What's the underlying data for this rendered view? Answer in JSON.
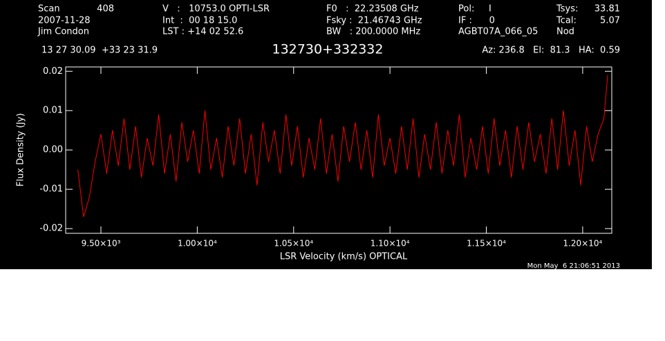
{
  "header": {
    "scan_label": "Scan",
    "scan": "408",
    "date": "2007-11-28",
    "observer": "Jim Condon",
    "velocity": "V   :   10753.0 OPTI-LSR",
    "int": "Int  :  00 18 15.0",
    "lst": "LST : +14 02 52.6",
    "f0": "F0   :  22.23508 GHz",
    "fsky": "Fsky :  21.46743 GHz",
    "bw": "BW   : 200.0000 MHz",
    "pol": "Pol:     I",
    "if": "IF :      0",
    "project": "AGBT07A_066_05",
    "tsys_label": "Tsys:",
    "tsys": "33.81",
    "tcal_label": "Tcal:",
    "tcal": "5.07",
    "procedure": "Nod",
    "coords": "13 27 30.09  +33 23 31.9",
    "azelha": "Az: 236.8   El:  81.3   HA:  0.59"
  },
  "chart_data": {
    "type": "line",
    "title": "132730+332332",
    "x_label": "LSR Velocity (km/s) OPTICAL",
    "y_label": "Flux Density (Jy)",
    "timestamp": "Mon May  6 21:06:51 2013",
    "color": "#ff0000",
    "xlim": [
      9317,
      12151
    ],
    "ylim": [
      -0.0212,
      0.0211
    ],
    "xticks": [
      {
        "value": 9500,
        "label": "9.50×10³"
      },
      {
        "value": 10000,
        "label": "1.00×10⁴"
      },
      {
        "value": 10500,
        "label": "1.05×10⁴"
      },
      {
        "value": 11000,
        "label": "1.10×10⁴"
      },
      {
        "value": 11500,
        "label": "1.15×10⁴"
      },
      {
        "value": 12000,
        "label": "1.20×10⁴"
      }
    ],
    "yticks": [
      -0.02,
      -0.01,
      {
        "value": 0,
        "label": "0.00"
      },
      0.01,
      0.02
    ],
    "x": [
      9380,
      9410,
      9440,
      9470,
      9500,
      9530,
      9560,
      9590,
      9620,
      9650,
      9680,
      9710,
      9740,
      9770,
      9800,
      9830,
      9860,
      9890,
      9920,
      9950,
      9980,
      10010,
      10040,
      10070,
      10100,
      10130,
      10160,
      10190,
      10220,
      10250,
      10280,
      10310,
      10340,
      10370,
      10400,
      10430,
      10460,
      10490,
      10520,
      10550,
      10580,
      10610,
      10640,
      10670,
      10700,
      10730,
      10760,
      10790,
      10820,
      10850,
      10880,
      10910,
      10940,
      10970,
      11000,
      11030,
      11060,
      11090,
      11120,
      11150,
      11180,
      11210,
      11240,
      11270,
      11300,
      11330,
      11360,
      11390,
      11420,
      11450,
      11480,
      11510,
      11540,
      11570,
      11600,
      11630,
      11660,
      11690,
      11720,
      11750,
      11780,
      11810,
      11840,
      11870,
      11900,
      11930,
      11960,
      11990,
      12020,
      12050,
      12080,
      12110,
      12130
    ],
    "values": [
      -0.005,
      -0.017,
      -0.012,
      -0.003,
      0.004,
      -0.006,
      0.005,
      -0.004,
      0.008,
      -0.005,
      0.006,
      -0.007,
      0.003,
      -0.004,
      0.009,
      -0.006,
      0.004,
      -0.008,
      0.007,
      -0.003,
      0.005,
      -0.006,
      0.01,
      -0.005,
      0.003,
      -0.007,
      0.006,
      -0.004,
      0.008,
      -0.006,
      0.004,
      -0.009,
      0.007,
      -0.003,
      0.005,
      -0.006,
      0.009,
      -0.004,
      0.006,
      -0.007,
      0.003,
      -0.005,
      0.008,
      -0.006,
      0.004,
      -0.008,
      0.006,
      -0.003,
      0.007,
      -0.005,
      0.005,
      -0.007,
      0.009,
      -0.004,
      0.003,
      -0.006,
      0.006,
      -0.005,
      0.008,
      -0.007,
      0.004,
      -0.005,
      0.007,
      -0.006,
      0.005,
      -0.004,
      0.009,
      -0.007,
      0.003,
      -0.005,
      0.006,
      -0.006,
      0.008,
      -0.004,
      0.005,
      -0.007,
      0.006,
      -0.005,
      0.007,
      -0.003,
      0.004,
      -0.006,
      0.008,
      -0.005,
      0.01,
      -0.004,
      0.005,
      -0.009,
      0.006,
      -0.003,
      0.004,
      0.008,
      0.019
    ]
  }
}
